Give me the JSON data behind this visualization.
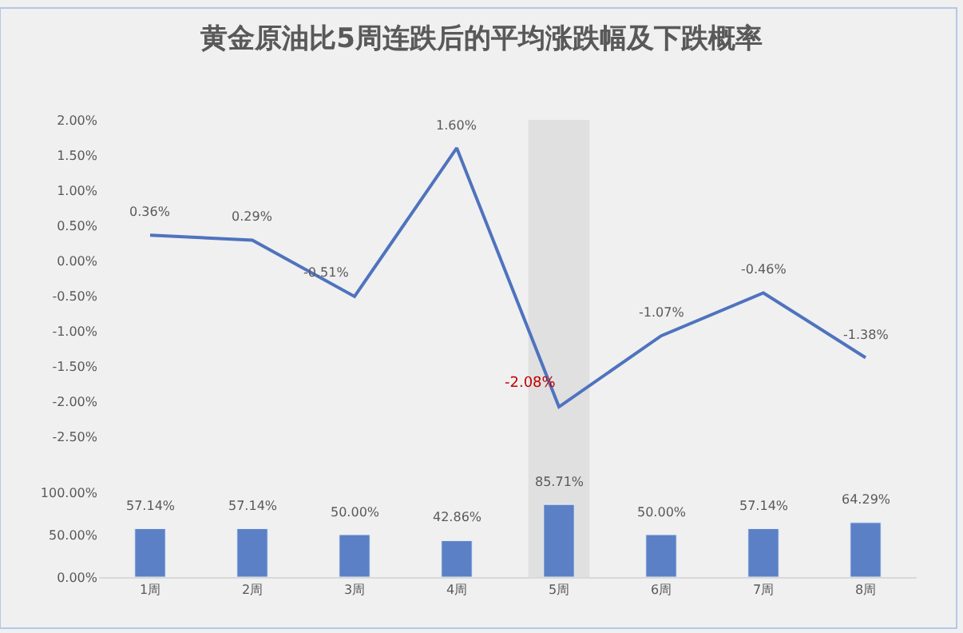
{
  "chart_data": [
    {
      "type": "line",
      "title": "黄金原油比5周连跌后的平均涨跌幅及下跌概率",
      "categories": [
        "1周",
        "2周",
        "3周",
        "4周",
        "5周",
        "6周",
        "7周",
        "8周"
      ],
      "series": [
        {
          "color": "#4f73be",
          "values": [
            0.36,
            0.29,
            -0.51,
            1.6,
            -2.08,
            -1.07,
            -0.46,
            -1.38
          ],
          "value_labels": [
            "0.36%",
            "0.29%",
            "-0.51%",
            "1.60%",
            "-2.08%",
            "-1.07%",
            "-0.46%",
            "-1.38%"
          ]
        }
      ],
      "ylim": [
        -2.5,
        2
      ],
      "yticks": [
        {
          "value": -2.5,
          "label": "-2.50%"
        },
        {
          "value": -2,
          "label": "-2.00%"
        },
        {
          "value": -1.5,
          "label": "-1.50%"
        },
        {
          "value": -1,
          "label": "-1.00%"
        },
        {
          "value": -0.5,
          "label": "-0.50%"
        },
        {
          "value": 0,
          "label": "0.00%"
        },
        {
          "value": 0.5,
          "label": "0.50%"
        },
        {
          "value": 1,
          "label": "1.00%"
        },
        {
          "value": 1.5,
          "label": "1.50%"
        },
        {
          "value": 2,
          "label": "2.00%"
        }
      ],
      "tick_labels": "y",
      "marker": "none",
      "grid": false,
      "bands": [
        {
          "axis": "x",
          "from": "5周",
          "to": "5周",
          "color": "#e0e0e0"
        }
      ]
    },
    {
      "type": "bar",
      "categories": [
        "1周",
        "2周",
        "3周",
        "4周",
        "5周",
        "6周",
        "7周",
        "8周"
      ],
      "series": [
        {
          "color": "#5b80c5",
          "values": [
            57.14,
            57.14,
            50,
            42.86,
            85.71,
            50,
            57.14,
            64.29
          ],
          "value_labels": [
            "57.14%",
            "57.14%",
            "50.00%",
            "42.86%",
            "85.71%",
            "50.00%",
            "57.14%",
            "64.29%"
          ]
        }
      ],
      "ylim": [
        0,
        100
      ],
      "yticks": [
        {
          "value": 0,
          "label": "0.00%"
        },
        {
          "value": 50,
          "label": "50.00%"
        },
        {
          "value": 100,
          "label": "100.00%"
        }
      ],
      "grid": false
    }
  ]
}
